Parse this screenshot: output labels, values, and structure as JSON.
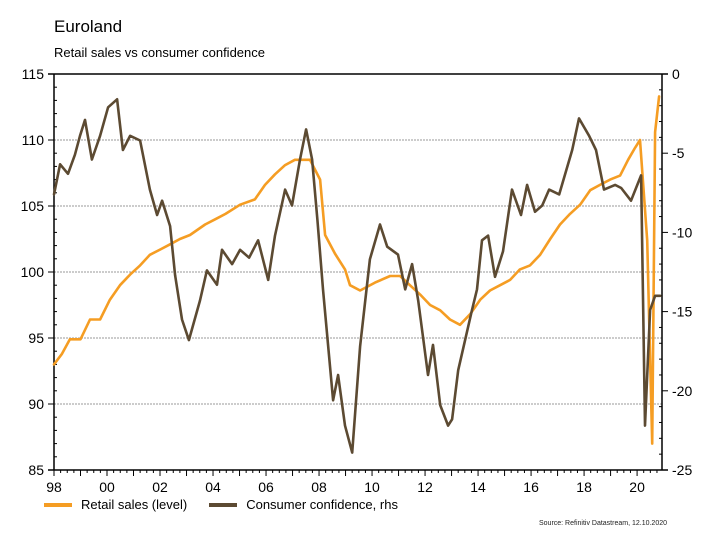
{
  "chart_data": {
    "type": "line",
    "title": "Euroland",
    "subtitle": "Retail sales vs consumer confidence",
    "source": "Source: Refinitiv Datastream, 12.10.2020",
    "xlabel": "",
    "ylabel_left": "",
    "ylabel_right": "",
    "x_ticks": [
      "98",
      "00",
      "02",
      "04",
      "06",
      "08",
      "10",
      "12",
      "14",
      "16",
      "18",
      "20"
    ],
    "x_tick_years": [
      1998,
      2000,
      2002,
      2004,
      2006,
      2008,
      2010,
      2012,
      2014,
      2016,
      2018,
      2020
    ],
    "xlim": [
      1998,
      2020.94
    ],
    "ylim_left": [
      85,
      115
    ],
    "yticks_left": [
      85,
      90,
      95,
      100,
      105,
      110,
      115
    ],
    "ylim_right": [
      -25,
      0
    ],
    "yticks_right": [
      -25,
      -20,
      -15,
      -10,
      -5,
      0
    ],
    "grid": "horizontal-dotted",
    "legend_position": "bottom-left",
    "series": [
      {
        "name": "Retail sales (level)",
        "axis": "left",
        "color": "#F59D23",
        "x": [
          1998.0,
          1998.3,
          1998.6,
          1999.0,
          1999.36,
          1999.74,
          2000.11,
          2000.49,
          2000.87,
          2001.25,
          2001.62,
          2002.0,
          2002.38,
          2002.75,
          2003.13,
          2003.7,
          2004.09,
          2004.47,
          2005.02,
          2005.58,
          2005.96,
          2006.34,
          2006.72,
          2007.09,
          2007.66,
          2008.04,
          2008.23,
          2008.6,
          2008.98,
          2009.17,
          2009.55,
          2010.11,
          2010.68,
          2011.06,
          2011.43,
          2011.81,
          2012.19,
          2012.57,
          2012.94,
          2013.32,
          2013.7,
          2014.08,
          2014.45,
          2014.83,
          2015.21,
          2015.58,
          2015.96,
          2016.34,
          2016.72,
          2017.09,
          2017.47,
          2017.85,
          2018.23,
          2018.6,
          2018.98,
          2019.36,
          2019.66,
          2019.92,
          2020.11,
          2020.38,
          2020.57,
          2020.68,
          2020.83
        ],
        "values": [
          93.0,
          93.8,
          94.9,
          94.9,
          96.4,
          96.4,
          97.9,
          99.0,
          99.8,
          100.5,
          101.3,
          101.7,
          102.1,
          102.5,
          102.8,
          103.6,
          104.0,
          104.4,
          105.1,
          105.5,
          106.6,
          107.4,
          108.1,
          108.5,
          108.5,
          107.0,
          102.8,
          101.4,
          100.2,
          99.0,
          98.6,
          99.2,
          99.7,
          99.7,
          99.0,
          98.3,
          97.5,
          97.1,
          96.4,
          96.0,
          96.8,
          97.9,
          98.6,
          99.0,
          99.4,
          100.2,
          100.5,
          101.3,
          102.5,
          103.6,
          104.4,
          105.1,
          106.2,
          106.6,
          107.0,
          107.3,
          108.5,
          109.4,
          110.0,
          102.4,
          87.0,
          110.6,
          113.3
        ]
      },
      {
        "name": "Consumer confidence, rhs",
        "axis": "right",
        "color": "#5C4A32",
        "x": [
          1998.0,
          1998.23,
          1998.53,
          1998.79,
          1998.98,
          1999.17,
          1999.43,
          1999.74,
          2000.04,
          2000.38,
          2000.6,
          2000.87,
          2001.25,
          2001.62,
          2001.89,
          2002.08,
          2002.38,
          2002.57,
          2002.83,
          2003.09,
          2003.51,
          2003.77,
          2004.15,
          2004.34,
          2004.72,
          2005.02,
          2005.36,
          2005.7,
          2006.08,
          2006.34,
          2006.72,
          2006.98,
          2007.28,
          2007.51,
          2007.74,
          2007.94,
          2008.15,
          2008.53,
          2008.72,
          2008.98,
          2009.25,
          2009.55,
          2009.92,
          2010.3,
          2010.57,
          2010.98,
          2011.25,
          2011.51,
          2011.74,
          2012.11,
          2012.3,
          2012.57,
          2012.87,
          2013.02,
          2013.25,
          2013.51,
          2013.77,
          2013.96,
          2014.15,
          2014.38,
          2014.64,
          2014.94,
          2015.28,
          2015.62,
          2015.85,
          2016.15,
          2016.42,
          2016.68,
          2017.06,
          2017.55,
          2017.81,
          2018.19,
          2018.45,
          2018.75,
          2019.17,
          2019.4,
          2019.77,
          2020.15,
          2020.3,
          2020.49,
          2020.68,
          2020.87
        ],
        "values": [
          -7.6,
          -5.7,
          -6.3,
          -5.1,
          -3.9,
          -2.9,
          -5.4,
          -3.9,
          -2.1,
          -1.6,
          -4.8,
          -3.9,
          -4.2,
          -7.3,
          -8.9,
          -8.0,
          -9.6,
          -12.7,
          -15.5,
          -16.8,
          -14.3,
          -12.4,
          -13.3,
          -11.1,
          -12.0,
          -11.1,
          -11.6,
          -10.5,
          -13.0,
          -10.2,
          -7.3,
          -8.3,
          -5.4,
          -3.5,
          -5.4,
          -9.2,
          -13.6,
          -20.6,
          -19.0,
          -22.2,
          -23.9,
          -17.2,
          -11.7,
          -9.5,
          -10.9,
          -11.4,
          -13.6,
          -12.0,
          -14.3,
          -19.0,
          -17.1,
          -20.9,
          -22.2,
          -21.8,
          -18.7,
          -16.8,
          -14.9,
          -13.6,
          -10.5,
          -10.2,
          -12.8,
          -11.2,
          -7.3,
          -8.9,
          -7.0,
          -8.7,
          -8.3,
          -7.3,
          -7.6,
          -4.8,
          -2.8,
          -3.9,
          -4.8,
          -7.3,
          -7.0,
          -7.2,
          -8.0,
          -6.4,
          -22.2,
          -14.9,
          -14.0,
          -14.0
        ]
      }
    ]
  }
}
